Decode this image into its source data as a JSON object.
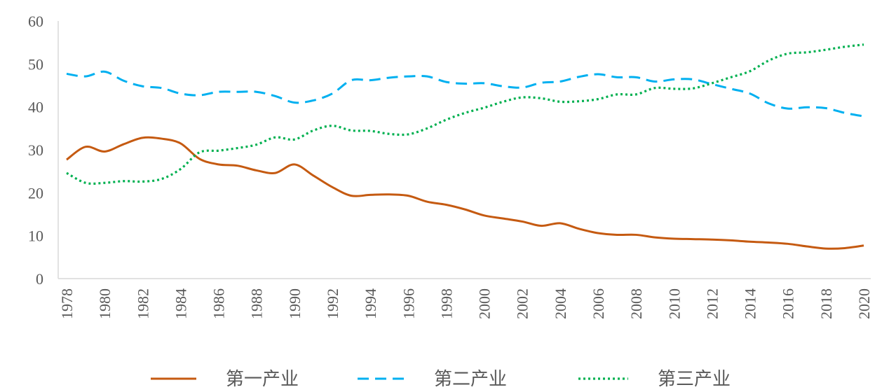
{
  "chart_data": {
    "type": "line",
    "title": "",
    "xlabel": "",
    "ylabel": "",
    "ylim": [
      0,
      60
    ],
    "yticks": [
      0,
      10,
      20,
      30,
      40,
      50,
      60
    ],
    "x": [
      1978,
      1979,
      1980,
      1981,
      1982,
      1983,
      1984,
      1985,
      1986,
      1987,
      1988,
      1989,
      1990,
      1991,
      1992,
      1993,
      1994,
      1995,
      1996,
      1997,
      1998,
      1999,
      2000,
      2001,
      2002,
      2003,
      2004,
      2005,
      2006,
      2007,
      2008,
      2009,
      2010,
      2011,
      2012,
      2013,
      2014,
      2015,
      2016,
      2017,
      2018,
      2019,
      2020
    ],
    "xticks": [
      "1978",
      "1980",
      "1982",
      "1984",
      "1986",
      "1988",
      "1990",
      "1992",
      "1994",
      "1996",
      "1998",
      "2000",
      "2002",
      "2004",
      "2006",
      "2008",
      "2010",
      "2012",
      "2014",
      "2016",
      "2018",
      "2020"
    ],
    "grid": false,
    "legend_position": "bottom",
    "series": [
      {
        "name": "第一产业",
        "color": "#C55A11",
        "style": "solid",
        "values": [
          27.7,
          30.7,
          29.6,
          31.3,
          32.8,
          32.6,
          31.5,
          27.9,
          26.6,
          26.3,
          25.2,
          24.6,
          26.6,
          24.0,
          21.3,
          19.3,
          19.5,
          19.6,
          19.3,
          17.9,
          17.2,
          16.1,
          14.7,
          14.0,
          13.3,
          12.3,
          12.9,
          11.6,
          10.6,
          10.2,
          10.2,
          9.6,
          9.3,
          9.2,
          9.1,
          8.9,
          8.6,
          8.4,
          8.1,
          7.5,
          7.0,
          7.1,
          7.7
        ]
      },
      {
        "name": "第二产业",
        "color": "#00B0F0",
        "style": "dashed",
        "values": [
          47.7,
          47.1,
          48.2,
          46.1,
          44.8,
          44.4,
          43.1,
          42.7,
          43.5,
          43.5,
          43.5,
          42.5,
          41.0,
          41.5,
          43.1,
          46.2,
          46.2,
          46.8,
          47.1,
          47.1,
          45.8,
          45.4,
          45.5,
          44.8,
          44.5,
          45.6,
          45.9,
          47.0,
          47.6,
          46.9,
          46.9,
          45.9,
          46.4,
          46.4,
          45.3,
          44.2,
          43.1,
          40.8,
          39.6,
          39.9,
          39.7,
          38.6,
          37.8
        ]
      },
      {
        "name": "第三产业",
        "color": "#00B050",
        "style": "dotted",
        "values": [
          24.6,
          22.3,
          22.3,
          22.7,
          22.6,
          23.2,
          25.5,
          29.4,
          29.8,
          30.4,
          31.2,
          32.9,
          32.4,
          34.5,
          35.6,
          34.5,
          34.4,
          33.7,
          33.6,
          35.0,
          37.0,
          38.6,
          39.8,
          41.2,
          42.2,
          42.0,
          41.2,
          41.3,
          41.8,
          42.9,
          42.9,
          44.4,
          44.2,
          44.3,
          45.5,
          46.9,
          48.3,
          50.8,
          52.4,
          52.7,
          53.3,
          54.0,
          54.5
        ]
      }
    ]
  }
}
